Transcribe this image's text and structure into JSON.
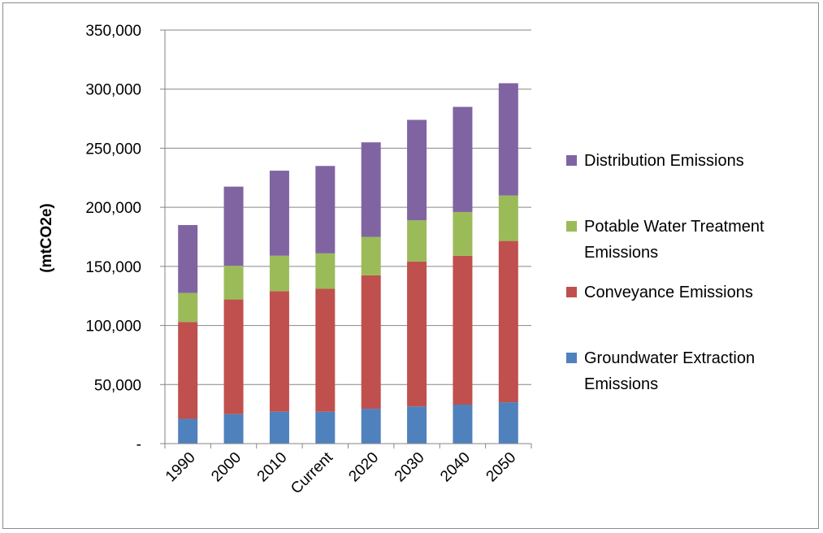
{
  "chart_data": {
    "type": "bar",
    "stacked": true,
    "categories": [
      "1990",
      "2000",
      "2010",
      "Current",
      "2020",
      "2030",
      "2040",
      "2050"
    ],
    "ylabel": "(mtCO2e)",
    "ylim": [
      0,
      350000
    ],
    "yticks": [
      0,
      50000,
      100000,
      150000,
      200000,
      250000,
      300000,
      350000
    ],
    "ytick_labels": [
      "-",
      "50,000",
      "100,000",
      "150,000",
      "200,000",
      "250,000",
      "300,000",
      "350,000"
    ],
    "grid": true,
    "legend_position": "right",
    "series": [
      {
        "name": "Groundwater Extraction Emissions",
        "name_lines": [
          "Groundwater Extraction",
          "Emissions"
        ],
        "color": "#4F81BD",
        "values": [
          21000,
          25000,
          27000,
          27000,
          29500,
          31500,
          33000,
          35000
        ]
      },
      {
        "name": "Conveyance Emissions",
        "name_lines": [
          "Conveyance Emissions"
        ],
        "color": "#C0504D",
        "values": [
          82000,
          97000,
          102000,
          104000,
          113000,
          122500,
          126000,
          136500
        ]
      },
      {
        "name": "Potable Water Treatment Emissions",
        "name_lines": [
          "Potable Water Treatment",
          "Emissions"
        ],
        "color": "#9BBB59",
        "values": [
          24500,
          28500,
          30000,
          30000,
          32500,
          35000,
          37000,
          38500
        ]
      },
      {
        "name": "Distribution Emissions",
        "name_lines": [
          "Distribution Emissions"
        ],
        "color": "#8064A2",
        "values": [
          57500,
          67000,
          72000,
          74000,
          80000,
          85000,
          89000,
          95000
        ]
      }
    ]
  }
}
